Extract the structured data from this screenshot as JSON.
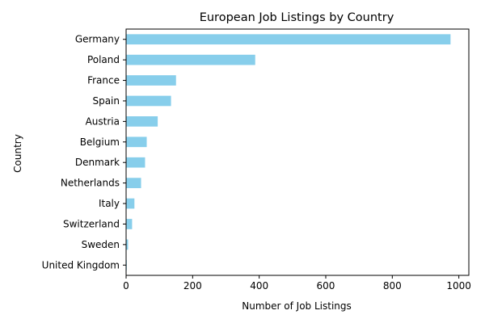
{
  "chart_data": {
    "type": "bar",
    "orientation": "horizontal",
    "title": "European Job Listings by Country",
    "xlabel": "Number of Job Listings",
    "ylabel": "Country",
    "categories": [
      "Germany",
      "Poland",
      "France",
      "Spain",
      "Austria",
      "Belgium",
      "Denmark",
      "Netherlands",
      "Italy",
      "Switzerland",
      "Sweden",
      "United Kingdom"
    ],
    "values": [
      975,
      388,
      150,
      135,
      95,
      62,
      57,
      45,
      25,
      18,
      6,
      2
    ],
    "xlim": [
      0,
      1030
    ],
    "xticks": [
      0,
      200,
      400,
      600,
      800,
      1000
    ],
    "grid": false,
    "bar_color": "#87CEEB"
  }
}
